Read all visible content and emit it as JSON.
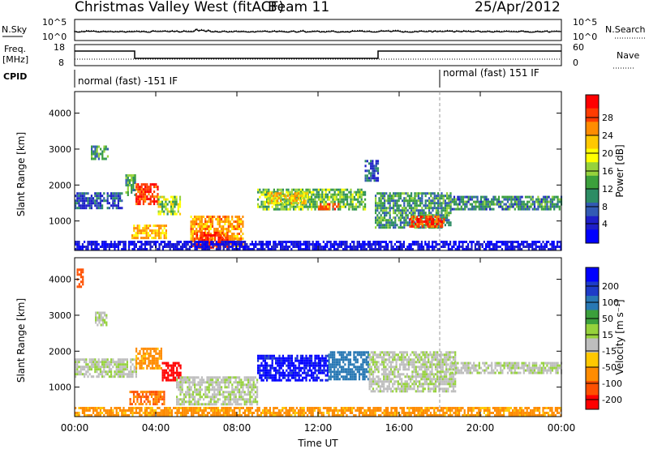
{
  "header": {
    "station": "Christmas Valley West (fitACF)",
    "beam": "Beam 11",
    "date": "25/Apr/2012"
  },
  "noise_panel": {
    "left_label": "N.Sky",
    "right_label": "N.Search",
    "left_ticks": [
      "10^5",
      "10^0"
    ],
    "right_ticks": [
      "10^5",
      "10^0"
    ]
  },
  "freq_panel": {
    "left_label_1": "Freq.",
    "left_label_2": "[MHz]",
    "right_label": "Nave",
    "left_ticks": [
      "18",
      "8"
    ],
    "right_ticks": [
      "60",
      "0"
    ]
  },
  "cpid_panel": {
    "label": "CPID",
    "mode_1": "normal (fast) -151 IF",
    "mode_2": "normal (fast) 151 IF"
  },
  "x_axis": {
    "label": "Time UT",
    "tick_labels": [
      "00:00",
      "04:00",
      "08:00",
      "12:00",
      "16:00",
      "20:00",
      "00:00"
    ]
  },
  "power_colorbar": {
    "label": "Power [dB]",
    "tick_labels": [
      "28",
      "24",
      "20",
      "16",
      "12",
      "8",
      "4"
    ],
    "colors": [
      "#ff0000",
      "#ff3c00",
      "#ff8c00",
      "#ffc800",
      "#ffff00",
      "#96d23c",
      "#3ca03c",
      "#2d8c64",
      "#325ab4",
      "#1e1ec8",
      "#0000ff"
    ]
  },
  "velocity_colorbar": {
    "label": "Velocity [m s⁻¹]",
    "tick_labels": [
      "200",
      "100",
      "50",
      "15",
      "-15",
      "-50",
      "-100",
      "-200"
    ],
    "colors": [
      "#0000ff",
      "#1e3cc8",
      "#2878b4",
      "#3ca03c",
      "#96d23c",
      "#bebebe",
      "#ffc800",
      "#ff8c00",
      "#ff5000",
      "#ff0000"
    ]
  },
  "chart_data": [
    {
      "type": "heatmap",
      "title": "Power",
      "xlabel": "",
      "ylabel": "Slant Range [km]",
      "xlim": [
        0,
        24
      ],
      "ylim": [
        180,
        4600
      ],
      "yticks": [
        "1000",
        "2000",
        "3000",
        "4000"
      ],
      "colorbar": "Power [dB]",
      "regions": [
        {
          "t": [
            0.0,
            2.3
          ],
          "r": [
            1350,
            1800
          ],
          "v": 8
        },
        {
          "t": [
            0.8,
            1.6
          ],
          "r": [
            2700,
            3100
          ],
          "v": 12
        },
        {
          "t": [
            2.5,
            3.0
          ],
          "r": [
            1700,
            2300
          ],
          "v": 12
        },
        {
          "t": [
            3.0,
            4.1
          ],
          "r": [
            1450,
            2050
          ],
          "v": 27
        },
        {
          "t": [
            4.1,
            5.2
          ],
          "r": [
            1200,
            1700
          ],
          "v": 15
        },
        {
          "t": [
            2.8,
            4.5
          ],
          "r": [
            500,
            900
          ],
          "v": 20
        },
        {
          "t": [
            5.7,
            8.3
          ],
          "r": [
            300,
            1150
          ],
          "v": 21
        },
        {
          "t": [
            6.0,
            7.5
          ],
          "r": [
            250,
            700
          ],
          "v": 28
        },
        {
          "t": [
            9.0,
            14.3
          ],
          "r": [
            1300,
            1900
          ],
          "v": 14
        },
        {
          "t": [
            9.5,
            11.5
          ],
          "r": [
            1500,
            1800
          ],
          "v": 18
        },
        {
          "t": [
            12.0,
            13.0
          ],
          "r": [
            1300,
            1500
          ],
          "v": 26
        },
        {
          "t": [
            14.3,
            15.0
          ],
          "r": [
            2100,
            2700
          ],
          "v": 8
        },
        {
          "t": [
            14.8,
            18.5
          ],
          "r": [
            850,
            1800
          ],
          "v": 12
        },
        {
          "t": [
            16.5,
            18.2
          ],
          "r": [
            850,
            1150
          ],
          "v": 26
        },
        {
          "t": [
            18.5,
            24.0
          ],
          "r": [
            1350,
            1700
          ],
          "v": 11
        },
        {
          "t": [
            0.0,
            24.0
          ],
          "r": [
            180,
            450
          ],
          "v": 4
        }
      ]
    },
    {
      "type": "heatmap",
      "title": "Velocity",
      "xlabel": "Time UT",
      "ylabel": "Slant Range [km]",
      "xlim": [
        0,
        24
      ],
      "ylim": [
        180,
        4600
      ],
      "yticks": [
        "1000",
        "2000",
        "3000",
        "4000"
      ],
      "colorbar": "Velocity [m s⁻¹]",
      "regions": [
        {
          "t": [
            0.0,
            3.0
          ],
          "r": [
            1300,
            1800
          ],
          "v": 0
        },
        {
          "t": [
            1.0,
            1.6
          ],
          "r": [
            2700,
            3100
          ],
          "v": 0
        },
        {
          "t": [
            0.1,
            0.4
          ],
          "r": [
            3800,
            4300
          ],
          "v": -180
        },
        {
          "t": [
            3.0,
            4.3
          ],
          "r": [
            1500,
            2100
          ],
          "v": -60
        },
        {
          "t": [
            4.3,
            5.2
          ],
          "r": [
            1200,
            1700
          ],
          "v": -220
        },
        {
          "t": [
            2.7,
            4.4
          ],
          "r": [
            500,
            900
          ],
          "v": -100
        },
        {
          "t": [
            5.0,
            9.0
          ],
          "r": [
            500,
            1300
          ],
          "v": 0
        },
        {
          "t": [
            9.0,
            12.5
          ],
          "r": [
            1200,
            1900
          ],
          "v": 210
        },
        {
          "t": [
            12.5,
            14.5
          ],
          "r": [
            1200,
            2000
          ],
          "v": 80
        },
        {
          "t": [
            14.5,
            18.8
          ],
          "r": [
            850,
            2000
          ],
          "v": 0
        },
        {
          "t": [
            18.5,
            24.0
          ],
          "r": [
            1400,
            1700
          ],
          "v": 0
        },
        {
          "t": [
            0.0,
            24.0
          ],
          "r": [
            180,
            450
          ],
          "v": -60
        }
      ]
    }
  ]
}
